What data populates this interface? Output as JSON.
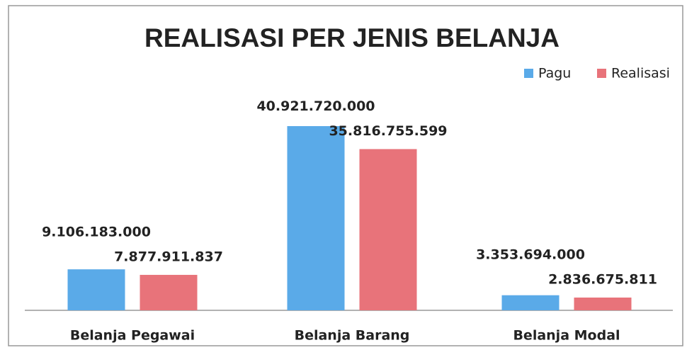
{
  "chart_data": {
    "type": "bar",
    "title": "REALISASI PER JENIS BELANJA",
    "categories": [
      "Belanja Pegawai",
      "Belanja Barang",
      "Belanja Modal"
    ],
    "series": [
      {
        "name": "Pagu",
        "color": "#5aaae8",
        "values": [
          9106183000,
          40921720000,
          3353694000
        ],
        "value_labels": [
          "9.106.183.000",
          "40.921.720.000",
          "3.353.694.000"
        ]
      },
      {
        "name": "Realisasi",
        "color": "#e8737a",
        "values": [
          7877911837,
          35816755599,
          2836675811
        ],
        "value_labels": [
          "7.877.911.837",
          "35.816.755.599",
          "2.836.675.811"
        ]
      }
    ],
    "legend": "top-right"
  }
}
